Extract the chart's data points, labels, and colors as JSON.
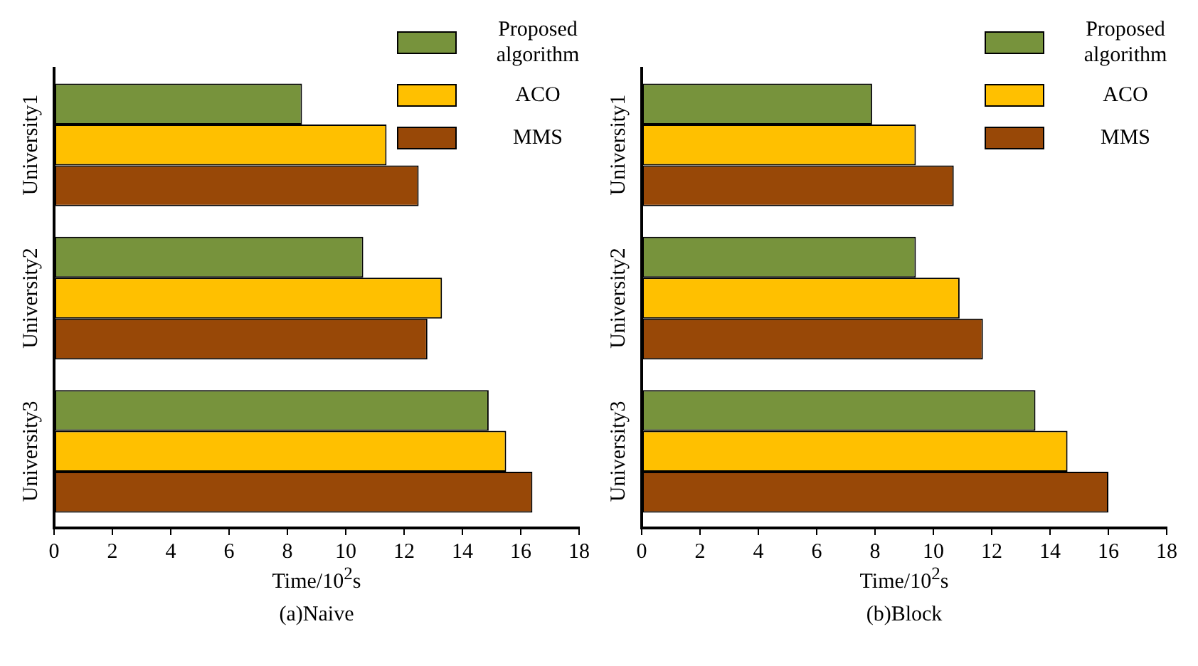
{
  "chart_data": [
    {
      "type": "bar",
      "orientation": "horizontal",
      "title": "(a)Naive",
      "xlabel": "Time/10$^{2}$s",
      "categories": [
        "University1",
        "University2",
        "University3"
      ],
      "series": [
        {
          "name": "Proposed algorithm",
          "color": "#77933c",
          "values": [
            8.5,
            10.6,
            14.9
          ]
        },
        {
          "name": "ACO",
          "color": "#ffc000",
          "values": [
            11.4,
            13.3,
            15.5
          ]
        },
        {
          "name": "MMS",
          "color": "#984807",
          "values": [
            12.5,
            12.8,
            16.4
          ]
        }
      ],
      "xlim": [
        0,
        18
      ],
      "xticks": [
        0,
        2,
        4,
        6,
        8,
        10,
        12,
        14,
        16,
        18
      ],
      "grid": false,
      "legend": "top right"
    },
    {
      "type": "bar",
      "orientation": "horizontal",
      "title": "(b)Block",
      "xlabel": "Time/10$^{2}$s",
      "categories": [
        "University1",
        "University2",
        "University3"
      ],
      "series": [
        {
          "name": "Proposed algorithm",
          "color": "#77933c",
          "values": [
            7.9,
            9.4,
            13.5
          ]
        },
        {
          "name": "ACO",
          "color": "#ffc000",
          "values": [
            9.4,
            10.9,
            14.6
          ]
        },
        {
          "name": "MMS",
          "color": "#984807",
          "values": [
            10.7,
            11.7,
            16.0
          ]
        }
      ],
      "xlim": [
        0,
        18
      ],
      "xticks": [
        0,
        2,
        4,
        6,
        8,
        10,
        12,
        14,
        16,
        18
      ],
      "grid": false,
      "legend": "top right"
    }
  ]
}
